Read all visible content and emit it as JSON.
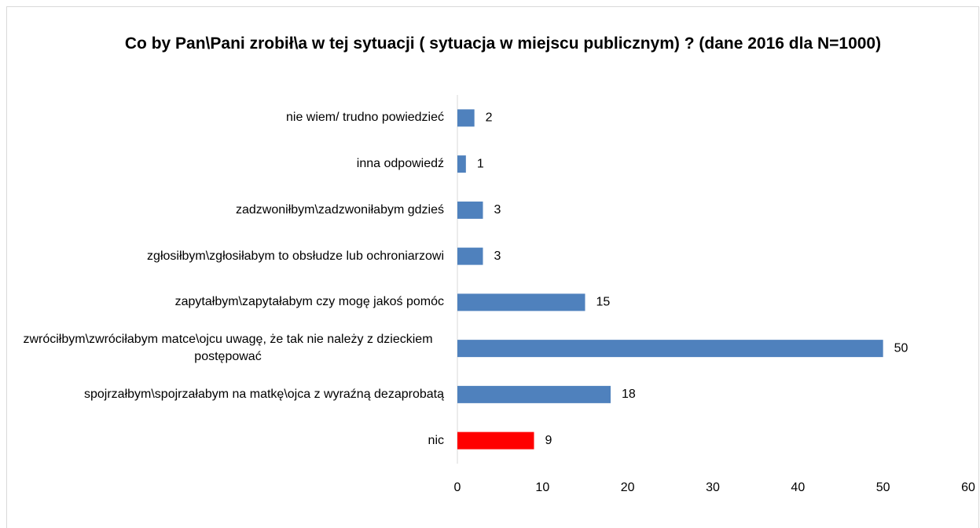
{
  "chart_data": {
    "type": "hbar",
    "title": "Co by Pan\\Pani zrobił\\a w tej sytuacji ( sytuacja w miejscu publicznym) ? (dane 2016 dla N=1000)",
    "categories": [
      "nie wiem/ trudno powiedzieć",
      "inna odpowiedź",
      "zadzwoniłbym\\zadzwoniłabym gdzieś",
      "zgłosiłbym\\zgłosiłabym to obsłudze lub ochroniarzowi",
      "zapytałbym\\zapytałabym czy mogę jakoś pomóc",
      "zwróciłbym\\zwróciłabym matce\\ojcu  uwagę, że tak nie należy z dzieckiem postępować",
      "spojrzałbym\\spojrzałabym na matkę\\ojca z wyraźną dezaprobatą",
      "nic"
    ],
    "values": [
      2,
      1,
      3,
      3,
      15,
      50,
      18,
      9
    ],
    "colors": [
      "#4f81bd",
      "#4f81bd",
      "#4f81bd",
      "#4f81bd",
      "#4f81bd",
      "#4f81bd",
      "#4f81bd",
      "#ff0000"
    ],
    "xlim": [
      0,
      60
    ],
    "xticks": [
      0,
      10,
      20,
      30,
      40,
      50,
      60
    ]
  }
}
